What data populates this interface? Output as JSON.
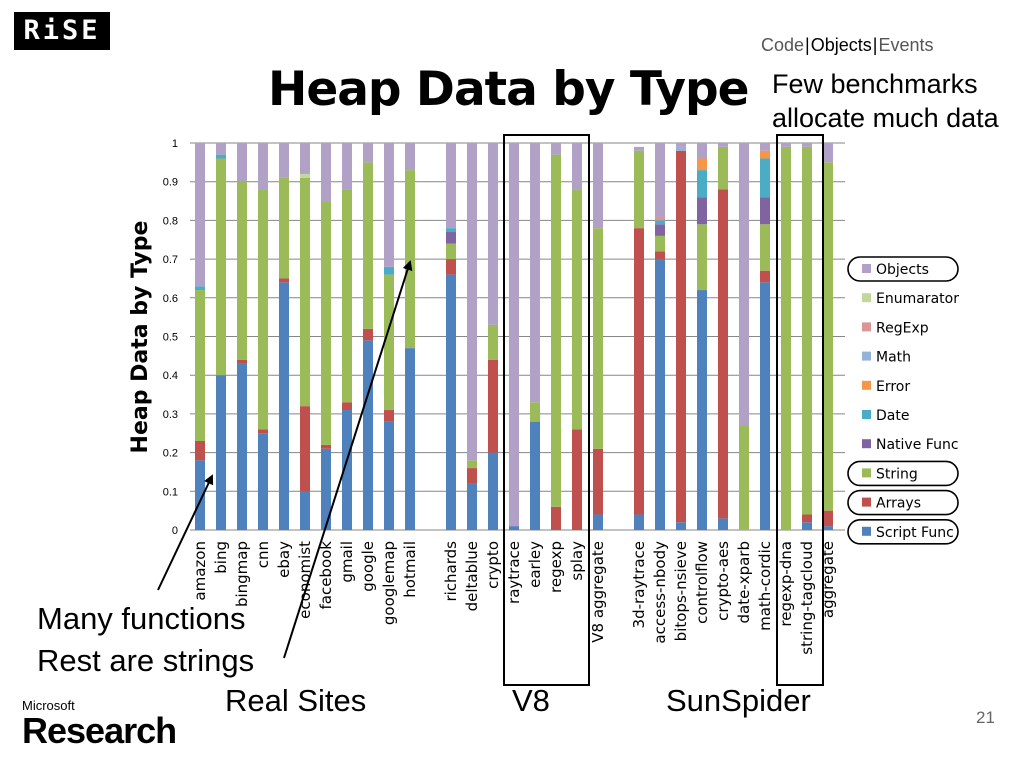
{
  "logo": {
    "text": "RiSE"
  },
  "nav": {
    "items": [
      "Code",
      "Objects",
      "Events"
    ],
    "current": "Objects"
  },
  "title": "Heap Data by Type",
  "annotations": {
    "top_right": [
      "Few benchmarks",
      "allocate much data"
    ],
    "bottom_left": [
      "Many functions",
      "Rest are strings"
    ]
  },
  "groups": [
    "Real Sites",
    "V8",
    "SunSpider"
  ],
  "page_number": "21",
  "footer": {
    "brand_small": "Microsoft",
    "brand_large": "Research"
  },
  "colors": {
    "Script Func": "#4f81bd",
    "Arrays": "#c0504d",
    "String": "#9bbb59",
    "Native Func": "#8064a2",
    "Date": "#4bacc6",
    "Error": "#f79646",
    "Math": "#95b3d7",
    "RegExp": "#d99694",
    "Enumarator": "#c3d69b",
    "Objects": "#b2a1c7"
  },
  "chart_data": {
    "type": "bar",
    "stacked": true,
    "ylabel": "Heap Data by Type",
    "ylim": [
      0,
      1
    ],
    "yticks": [
      "0",
      "0.1",
      "0.2",
      "0.3",
      "0.4",
      "0.5",
      "0.6",
      "0.7",
      "0.8",
      "0.9",
      "1"
    ],
    "categories": [
      "amazon",
      "bing",
      "bingmap",
      "cnn",
      "ebay",
      "economist",
      "facebook",
      "gmail",
      "google",
      "googlemap",
      "hotmail",
      "richards",
      "deltablue",
      "crypto",
      "raytrace",
      "earley",
      "regexp",
      "splay",
      "V8 aggregate",
      "3d-raytrace",
      "access-nbody",
      "bitops-nsieve",
      "controlflow",
      "crypto-aes",
      "date-xparb",
      "math-cordic",
      "regexp-dna",
      "string-tagcloud",
      "aggregate"
    ],
    "legend": [
      "Objects",
      "Enumarator",
      "RegExp",
      "Math",
      "Error",
      "Date",
      "Native Func",
      "String",
      "Arrays",
      "Script Func"
    ],
    "circled_legend": [
      "Objects",
      "String",
      "Arrays",
      "Script Func"
    ],
    "series": [
      {
        "name": "Script Func",
        "values": [
          0.18,
          0.4,
          0.43,
          0.25,
          0.64,
          0.1,
          0.21,
          0.31,
          0.49,
          0.28,
          0.47,
          0.66,
          0.12,
          0.2,
          0.01,
          0.28,
          0.0,
          0.0,
          0.04,
          0.04,
          0.7,
          0.02,
          0.62,
          0.03,
          0.0,
          0.64,
          0.0,
          0.02,
          0.01
        ]
      },
      {
        "name": "Arrays",
        "values": [
          0.05,
          0.0,
          0.01,
          0.01,
          0.01,
          0.22,
          0.01,
          0.02,
          0.03,
          0.03,
          0.0,
          0.04,
          0.04,
          0.24,
          0.0,
          0.0,
          0.06,
          0.26,
          0.17,
          0.74,
          0.02,
          0.96,
          0.0,
          0.85,
          0.0,
          0.03,
          0.0,
          0.02,
          0.04
        ]
      },
      {
        "name": "String",
        "values": [
          0.39,
          0.56,
          0.46,
          0.62,
          0.26,
          0.59,
          0.63,
          0.55,
          0.43,
          0.35,
          0.46,
          0.04,
          0.02,
          0.09,
          0.0,
          0.05,
          0.91,
          0.62,
          0.57,
          0.2,
          0.04,
          0.0,
          0.17,
          0.11,
          0.27,
          0.12,
          0.99,
          0.95,
          0.9
        ]
      },
      {
        "name": "Native Func",
        "values": [
          0.0,
          0.0,
          0.0,
          0.0,
          0.0,
          0.0,
          0.0,
          0.0,
          0.0,
          0.0,
          0.0,
          0.03,
          0.0,
          0.0,
          0.0,
          0.0,
          0.0,
          0.0,
          0.0,
          0.0,
          0.03,
          0.0,
          0.07,
          0.0,
          0.0,
          0.07,
          0.0,
          0.0,
          0.0
        ]
      },
      {
        "name": "Date",
        "values": [
          0.01,
          0.01,
          0.0,
          0.0,
          0.0,
          0.0,
          0.0,
          0.0,
          0.0,
          0.02,
          0.0,
          0.01,
          0.0,
          0.0,
          0.0,
          0.0,
          0.0,
          0.0,
          0.0,
          0.0,
          0.01,
          0.0,
          0.07,
          0.0,
          0.0,
          0.1,
          0.0,
          0.0,
          0.0
        ]
      },
      {
        "name": "Error",
        "values": [
          0.0,
          0.0,
          0.0,
          0.0,
          0.0,
          0.0,
          0.0,
          0.0,
          0.0,
          0.0,
          0.0,
          0.0,
          0.0,
          0.0,
          0.0,
          0.0,
          0.0,
          0.0,
          0.0,
          0.0,
          0.0,
          0.0,
          0.03,
          0.0,
          0.0,
          0.02,
          0.0,
          0.0,
          0.0
        ]
      },
      {
        "name": "Math",
        "values": [
          0.0,
          0.0,
          0.0,
          0.0,
          0.0,
          0.0,
          0.0,
          0.0,
          0.0,
          0.0,
          0.0,
          0.0,
          0.0,
          0.0,
          0.0,
          0.0,
          0.0,
          0.0,
          0.0,
          0.0,
          0.0,
          0.01,
          0.0,
          0.0,
          0.0,
          0.0,
          0.0,
          0.0,
          0.0
        ]
      },
      {
        "name": "RegExp",
        "values": [
          0.0,
          0.0,
          0.0,
          0.0,
          0.0,
          0.0,
          0.0,
          0.0,
          0.0,
          0.0,
          0.0,
          0.0,
          0.0,
          0.0,
          0.0,
          0.0,
          0.0,
          0.0,
          0.0,
          0.0,
          0.01,
          0.0,
          0.0,
          0.0,
          0.0,
          0.0,
          0.0,
          0.0,
          0.0
        ]
      },
      {
        "name": "Enumarator",
        "values": [
          0.0,
          0.0,
          0.0,
          0.0,
          0.0,
          0.01,
          0.0,
          0.0,
          0.0,
          0.0,
          0.0,
          0.0,
          0.0,
          0.0,
          0.0,
          0.0,
          0.0,
          0.0,
          0.0,
          0.0,
          0.0,
          0.0,
          0.0,
          0.0,
          0.0,
          0.0,
          0.0,
          0.0,
          0.0
        ]
      },
      {
        "name": "Objects",
        "values": [
          0.37,
          0.03,
          0.1,
          0.12,
          0.09,
          0.08,
          0.15,
          0.12,
          0.05,
          0.32,
          0.07,
          0.22,
          0.82,
          0.47,
          0.99,
          0.67,
          0.03,
          0.12,
          0.22,
          0.01,
          0.19,
          0.01,
          0.04,
          0.01,
          0.73,
          0.02,
          0.01,
          0.01,
          0.05
        ]
      }
    ]
  }
}
